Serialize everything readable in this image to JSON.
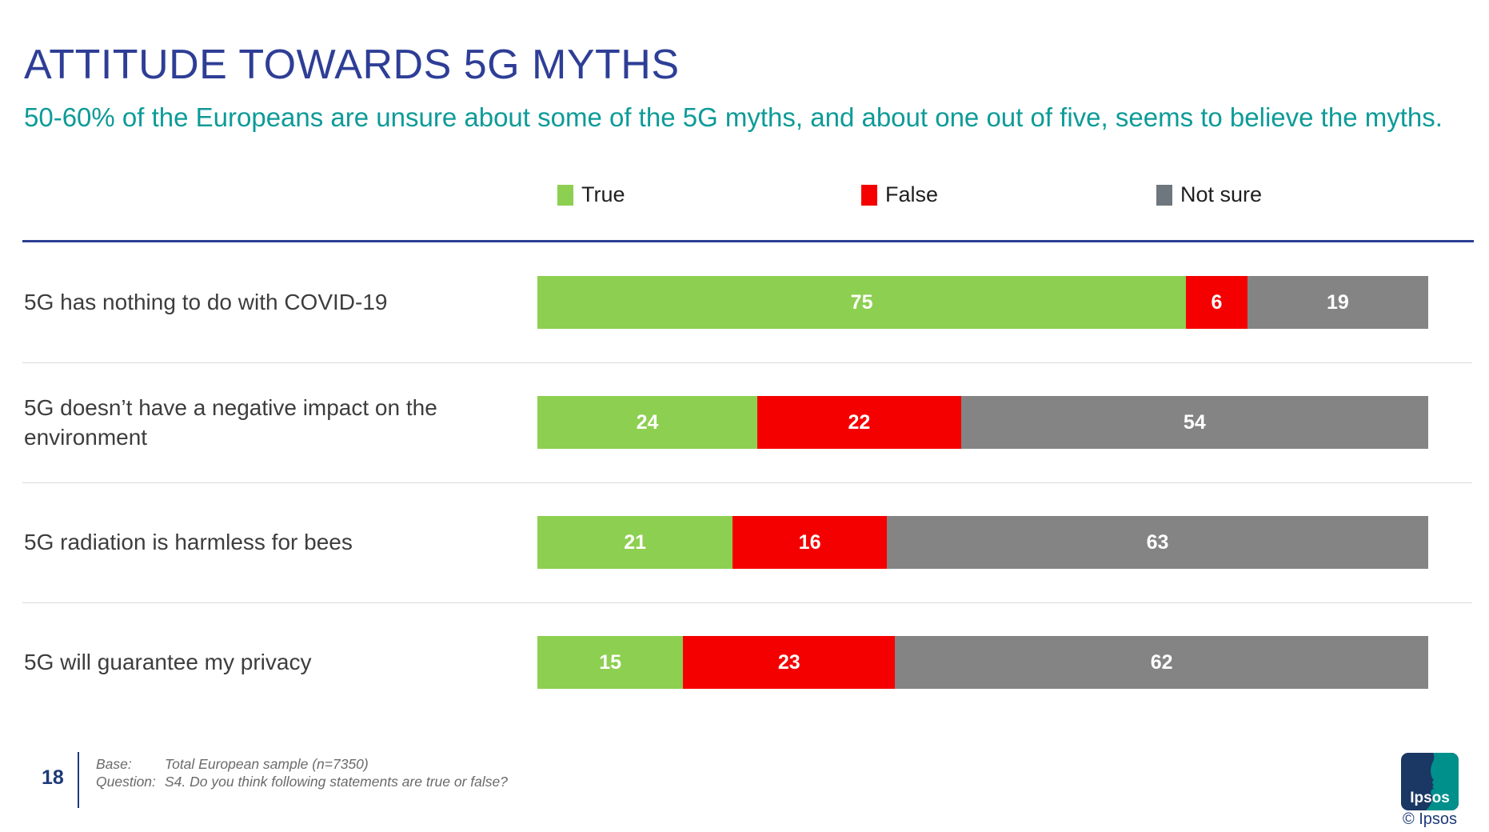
{
  "colors": {
    "title": "#2e3e96",
    "subtitle": "#0d9b98",
    "header_line": "#2c3f94",
    "navy": "#1b3764",
    "teal": "#00908c",
    "footer_navy": "#1e3a78",
    "value_label": "#ffffff"
  },
  "header": {
    "title": "ATTITUDE TOWARDS 5G MYTHS",
    "subtitle": "50-60% of the Europeans are unsure about some of the 5G myths, and about one out of five, seems to believe the myths."
  },
  "chart_data": {
    "type": "bar",
    "orientation": "horizontal",
    "stacked": true,
    "xlim": [
      0,
      100
    ],
    "grid": false,
    "legend_position": "top",
    "value_labels": "centered inside segments, white bold",
    "categories": [
      "5G has nothing to do with COVID-19",
      "5G doesn’t have a negative impact on the environment",
      "5G radiation is harmless for bees",
      "5G will guarantee my privacy"
    ],
    "series": [
      {
        "name": "True",
        "color": "#8dcf50",
        "legend_color": "#8dcf50",
        "values": [
          75,
          24,
          21,
          15
        ]
      },
      {
        "name": "False",
        "color": "#f50000",
        "legend_color": "#f50000",
        "values": [
          6,
          22,
          16,
          23
        ]
      },
      {
        "name": "Not sure",
        "color": "#848484",
        "legend_color": "#6e777d",
        "values": [
          19,
          54,
          63,
          62
        ]
      }
    ]
  },
  "footer": {
    "page_number": "18",
    "notes": [
      {
        "label": "Base:",
        "value": "Total European sample (n=7350)"
      },
      {
        "label": "Question:",
        "value": "S4. Do you think following statements are true or false?"
      }
    ],
    "logo_text": "Ipsos",
    "copyright": "© Ipsos"
  }
}
